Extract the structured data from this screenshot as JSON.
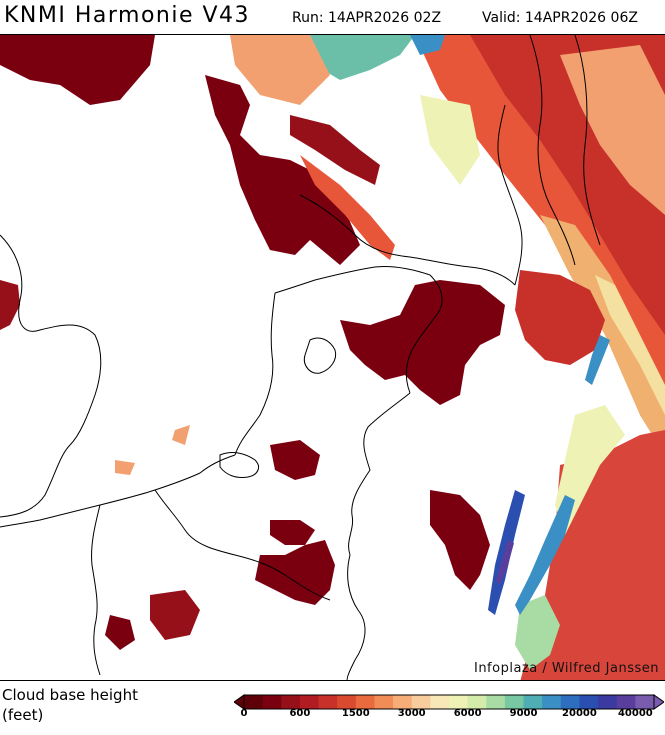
{
  "header": {
    "title": "KNMI Harmonie V43",
    "run": "Run: 14APR2026 02Z",
    "valid": "Valid: 14APR2026 06Z"
  },
  "map": {
    "credit": "Infoplaza / Wilfred Janssen"
  },
  "legend": {
    "title": "Cloud base height\n(feet)",
    "tick_labels": [
      "0",
      "600",
      "1500",
      "3000",
      "6000",
      "9000",
      "20000",
      "40000"
    ],
    "colors": [
      "#5e0008",
      "#7a0010",
      "#96101a",
      "#b01c22",
      "#c8302a",
      "#da4a30",
      "#e86a3e",
      "#f28c56",
      "#f6ad78",
      "#f8cc9c",
      "#f8e8b8",
      "#eef2b4",
      "#d4ebaa",
      "#a9dba4",
      "#79c8a4",
      "#4faeb4",
      "#3a8fc4",
      "#2d6ebe",
      "#2a4fb0",
      "#3a3aa0",
      "#5a3e9e",
      "#7a5cae"
    ]
  }
}
